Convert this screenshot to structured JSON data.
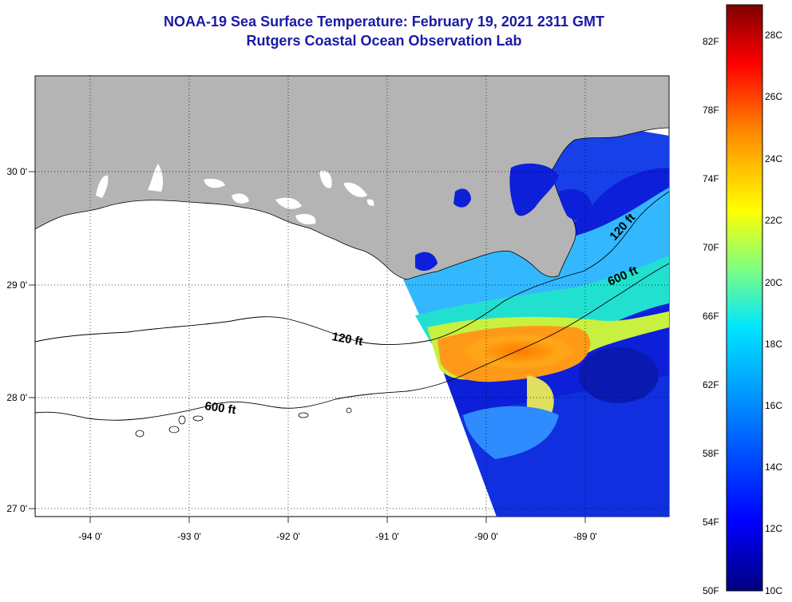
{
  "header": {
    "title": "NOAA-19 Sea Surface Temperature:  February 19, 2021 2311 GMT",
    "subtitle": "Rutgers Coastal Ocean Observation Lab"
  },
  "axes": {
    "longitude_ticks": [
      "-94 0'",
      "-93 0'",
      "-92 0'",
      "-91 0'",
      "-90 0'",
      "-89 0'"
    ],
    "latitude_ticks": [
      "30 0'",
      "29 0'",
      "28 0'",
      "27 0'"
    ]
  },
  "contours": {
    "shelf_label": "120 ft",
    "slope_label": "600 ft"
  },
  "colorbar": {
    "fahrenheit_labels": [
      "82F",
      "78F",
      "74F",
      "70F",
      "66F",
      "62F",
      "58F",
      "54F",
      "50F"
    ],
    "celsius_labels": [
      "28C",
      "26C",
      "24C",
      "22C",
      "20C",
      "18C",
      "16C",
      "14C",
      "12C",
      "10C"
    ]
  },
  "colors": {
    "land": "#b4b4b4",
    "no_data": "#ffffff",
    "title": "#1a1aa6",
    "scale": [
      "#00007f",
      "#0000ff",
      "#007fff",
      "#00ffff",
      "#7fff7f",
      "#ffff00",
      "#ff7f00",
      "#ff0000",
      "#7f0000"
    ]
  }
}
